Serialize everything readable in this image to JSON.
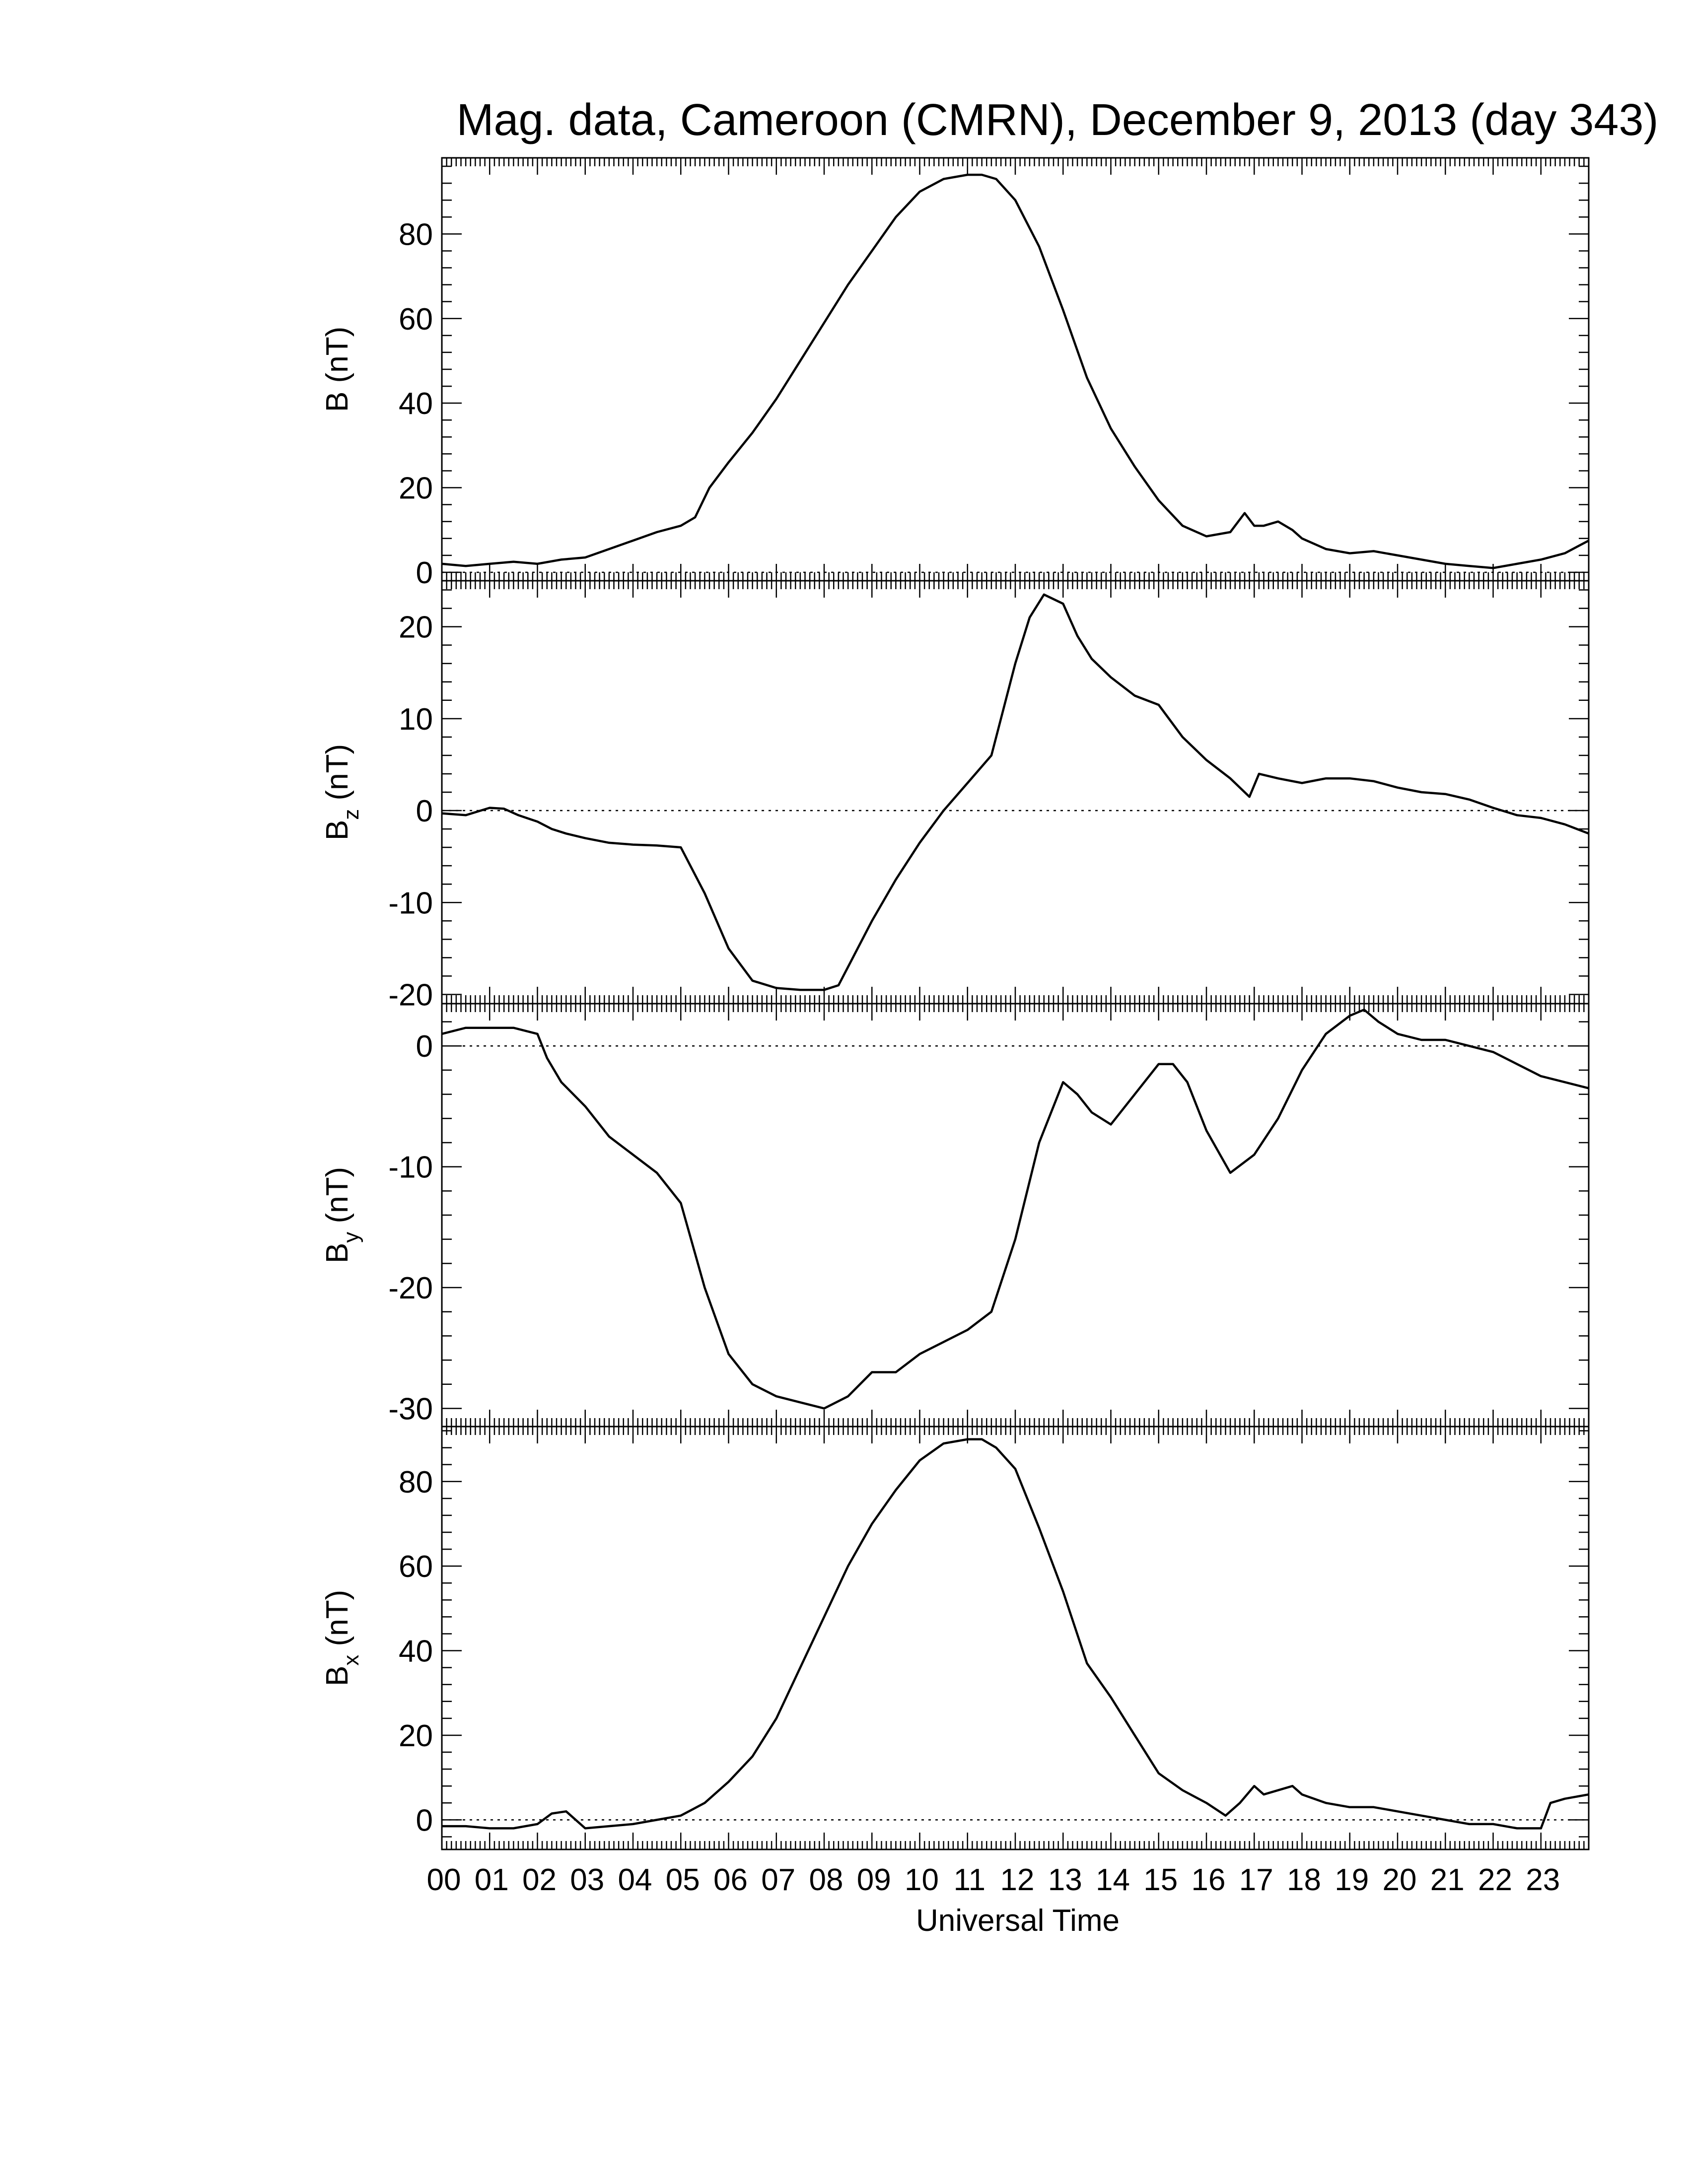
{
  "chart_data": {
    "type": "line",
    "title": "Mag. data, Cameroon (CMRN), December 9, 2013 (day 343)",
    "xlabel": "Universal Time",
    "x_range_hours": [
      0,
      24
    ],
    "x_tick_labels": [
      "00",
      "01",
      "02",
      "03",
      "04",
      "05",
      "06",
      "07",
      "08",
      "09",
      "10",
      "11",
      "12",
      "13",
      "14",
      "15",
      "16",
      "17",
      "18",
      "19",
      "20",
      "21",
      "22",
      "23"
    ],
    "grid": false,
    "zero_reference_line": "dotted",
    "panels": [
      {
        "name": "B",
        "ylabel_main": "B",
        "ylabel_sub": "",
        "ylabel_unit": " (nT)",
        "ylim": [
          -2,
          98
        ],
        "yticks": [
          0,
          20,
          40,
          60,
          80
        ],
        "x": [
          0,
          0.5,
          1,
          1.5,
          2,
          2.5,
          3,
          3.5,
          4,
          4.5,
          5,
          5.3,
          5.6,
          6,
          6.5,
          7,
          7.5,
          8,
          8.5,
          9,
          9.5,
          10,
          10.5,
          11,
          11.3,
          11.6,
          12,
          12.5,
          13,
          13.5,
          14,
          14.5,
          15,
          15.5,
          16,
          16.5,
          16.8,
          17,
          17.2,
          17.5,
          17.8,
          18,
          18.5,
          19,
          19.5,
          20,
          20.5,
          21,
          21.5,
          22,
          22.5,
          23,
          23.5,
          24
        ],
        "y": [
          2,
          1.5,
          2,
          2.5,
          2,
          3,
          3.5,
          5.5,
          7.5,
          9.5,
          11,
          13,
          20,
          26,
          33,
          41,
          50,
          59,
          68,
          76,
          84,
          90,
          93,
          94,
          94,
          93,
          88,
          77,
          62,
          46,
          34,
          25,
          17,
          11,
          8.5,
          9.5,
          14,
          11,
          11,
          12,
          10,
          8,
          5.5,
          4.5,
          5,
          4,
          3,
          2,
          1.5,
          1,
          2,
          3,
          4.5,
          7.5
        ]
      },
      {
        "name": "Bz",
        "ylabel_main": "B",
        "ylabel_sub": "z",
        "ylabel_unit": " (nT)",
        "ylim": [
          -21,
          25
        ],
        "yticks": [
          -20,
          -10,
          0,
          10,
          20
        ],
        "x": [
          0,
          0.5,
          1,
          1.3,
          1.6,
          2,
          2.3,
          2.6,
          3,
          3.5,
          4,
          4.5,
          5,
          5.5,
          6,
          6.5,
          7,
          7.5,
          8,
          8.3,
          8.6,
          9,
          9.5,
          10,
          10.5,
          11,
          11.5,
          12,
          12.3,
          12.6,
          13,
          13.3,
          13.6,
          14,
          14.5,
          15,
          15.5,
          16,
          16.5,
          16.9,
          17.1,
          17.5,
          18,
          18.5,
          19,
          19.5,
          20,
          20.5,
          21,
          21.5,
          22,
          22.5,
          23,
          23.5,
          24
        ],
        "y": [
          -0.3,
          -0.5,
          0.3,
          0.2,
          -0.5,
          -1.2,
          -2,
          -2.5,
          -3,
          -3.5,
          -3.7,
          -3.8,
          -4,
          -9,
          -15,
          -18.5,
          -19.3,
          -19.5,
          -19.5,
          -19,
          -16,
          -12,
          -7.5,
          -3.5,
          0,
          3,
          6,
          16,
          21,
          23.5,
          22.5,
          19,
          16.5,
          14.5,
          12.5,
          11.5,
          8,
          5.5,
          3.5,
          1.5,
          4,
          3.5,
          3,
          3.5,
          3.5,
          3.2,
          2.5,
          2,
          1.8,
          1.2,
          0.3,
          -0.5,
          -0.8,
          -1.5,
          -2.5
        ]
      },
      {
        "name": "By",
        "ylabel_main": "B",
        "ylabel_sub": "y",
        "ylabel_unit": " (nT)",
        "ylim": [
          -31.5,
          3.5
        ],
        "yticks": [
          -30,
          -20,
          -10,
          0
        ],
        "x": [
          0,
          0.5,
          1,
          1.5,
          2,
          2.2,
          2.5,
          3,
          3.5,
          4,
          4.5,
          5,
          5.5,
          6,
          6.5,
          7,
          7.5,
          8,
          8.5,
          9,
          9.5,
          10,
          10.5,
          11,
          11.5,
          12,
          12.5,
          13,
          13.3,
          13.6,
          14,
          14.5,
          15,
          15.3,
          15.6,
          16,
          16.5,
          17,
          17.5,
          18,
          18.5,
          19,
          19.3,
          19.6,
          20,
          20.5,
          21,
          21.5,
          22,
          22.5,
          23,
          23.5,
          24
        ],
        "y": [
          1,
          1.5,
          1.5,
          1.5,
          1,
          -1,
          -3,
          -5,
          -7.5,
          -9,
          -10.5,
          -13,
          -20,
          -25.5,
          -28,
          -29,
          -29.5,
          -30,
          -29,
          -27,
          -27,
          -25.5,
          -24.5,
          -23.5,
          -22,
          -16,
          -8,
          -3,
          -4,
          -5.5,
          -6.5,
          -4,
          -1.5,
          -1.5,
          -3,
          -7,
          -10.5,
          -9,
          -6,
          -2,
          1,
          2.5,
          3,
          2,
          1,
          0.5,
          0.5,
          0,
          -0.5,
          -1.5,
          -2.5,
          -3,
          -3.5
        ]
      },
      {
        "name": "Bx",
        "ylabel_main": "B",
        "ylabel_sub": "x",
        "ylabel_unit": " (nT)",
        "ylim": [
          -7,
          93
        ],
        "yticks": [
          0,
          20,
          40,
          60,
          80
        ],
        "x": [
          0,
          0.5,
          1,
          1.5,
          2,
          2.3,
          2.6,
          3,
          3.5,
          4,
          4.5,
          5,
          5.5,
          6,
          6.5,
          7,
          7.5,
          8,
          8.5,
          9,
          9.5,
          10,
          10.5,
          11,
          11.3,
          11.6,
          12,
          12.5,
          13,
          13.5,
          14,
          14.5,
          15,
          15.5,
          16,
          16.4,
          16.7,
          17,
          17.2,
          17.5,
          17.8,
          18,
          18.5,
          19,
          19.5,
          20,
          20.5,
          21,
          21.5,
          22,
          22.5,
          23,
          23.2,
          23.5,
          24
        ],
        "y": [
          -1.5,
          -1.5,
          -2,
          -2,
          -1,
          1.5,
          2,
          -2,
          -1.5,
          -1,
          0,
          1,
          4,
          9,
          15,
          24,
          36,
          48,
          60,
          70,
          78,
          85,
          89,
          90,
          90,
          88,
          83,
          69,
          54,
          37,
          29,
          20,
          11,
          7,
          4,
          1,
          4,
          8,
          6,
          7,
          8,
          6,
          4,
          3,
          3,
          2,
          1,
          0,
          -1,
          -1,
          -2,
          -2,
          4,
          5,
          6
        ]
      }
    ]
  }
}
